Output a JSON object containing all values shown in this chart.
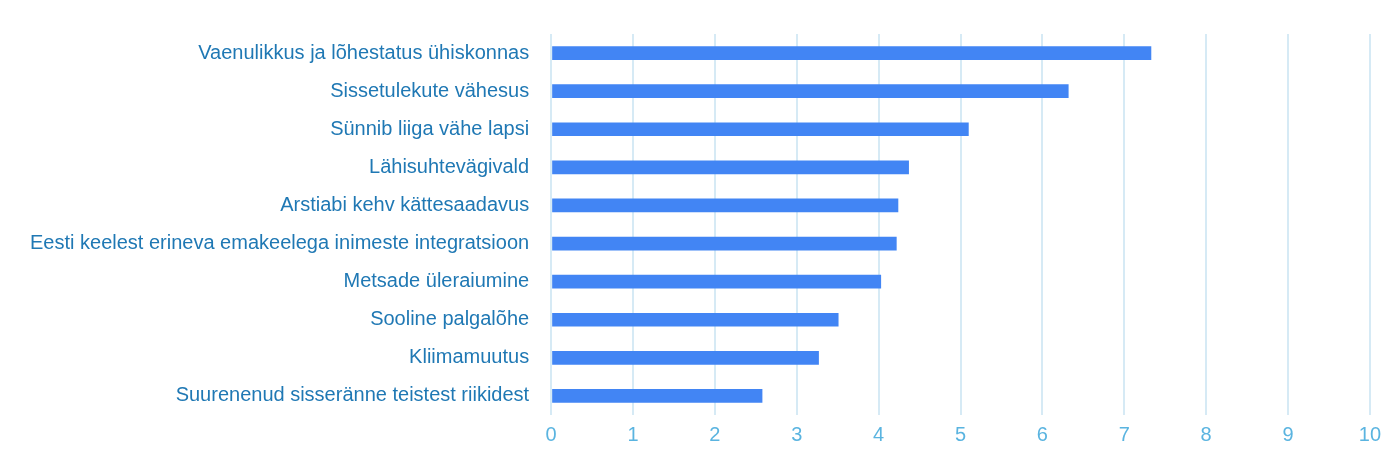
{
  "chart_data": {
    "type": "bar",
    "orientation": "horizontal",
    "categories": [
      "Vaenulikkus ja lõhestatus ühiskonnas",
      "Sissetulekute vähesus",
      "Sünnib liiga vähe lapsi",
      "Lähisuhtevägivald",
      "Arstiabi kehv kättesaadavus",
      "Eesti keelest erineva emakeelega inimeste integratsioon",
      "Metsade üleraiumine",
      "Sooline palgalõhe",
      "Kliimamuutus",
      "Suurenenud sisseränne teistest riikidest"
    ],
    "values": [
      7.33,
      6.32,
      5.1,
      4.37,
      4.24,
      4.22,
      4.03,
      3.51,
      3.27,
      2.58
    ],
    "color": "#4285f4",
    "xlim": [
      0,
      10
    ],
    "xticks": [
      0,
      1,
      2,
      3,
      4,
      5,
      6,
      7,
      8,
      9,
      10
    ],
    "grid": "x",
    "legend": false
  }
}
